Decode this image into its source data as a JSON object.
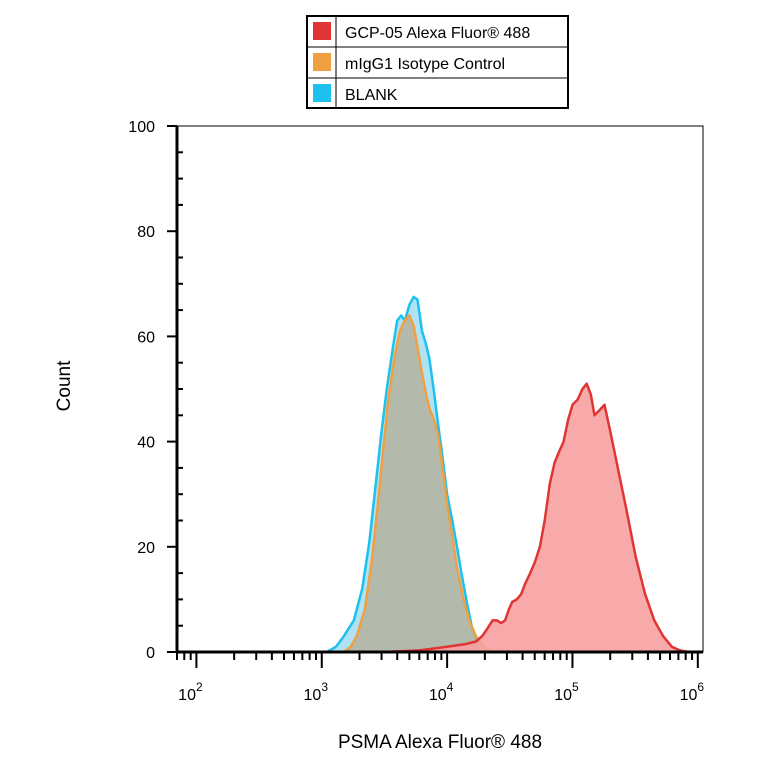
{
  "chart_data": {
    "type": "area",
    "title": "",
    "xlabel": "PSMA Alexa Fluor® 488",
    "ylabel": "Count",
    "xscale": "log",
    "xlim": [
      70,
      1100000
    ],
    "ylim": [
      0,
      100
    ],
    "yticks": [
      0,
      20,
      40,
      60,
      80,
      100
    ],
    "xticks": [
      {
        "value": 100,
        "base": "10",
        "exp": "2"
      },
      {
        "value": 1000,
        "base": "10",
        "exp": "3"
      },
      {
        "value": 10000,
        "base": "10",
        "exp": "4"
      },
      {
        "value": 100000,
        "base": "10",
        "exp": "5"
      },
      {
        "value": 1000000,
        "base": "10",
        "exp": "6"
      }
    ],
    "legend_position": "top",
    "grid": false,
    "series": [
      {
        "name": "BLANK",
        "color": "#1ec0ee",
        "fill": "#a6dff2",
        "points": [
          [
            70,
            0
          ],
          [
            1100,
            0
          ],
          [
            1300,
            1
          ],
          [
            1500,
            3
          ],
          [
            1800,
            6
          ],
          [
            2100,
            12
          ],
          [
            2400,
            21
          ],
          [
            2700,
            32
          ],
          [
            3000,
            42
          ],
          [
            3300,
            50
          ],
          [
            3700,
            58
          ],
          [
            4000,
            63
          ],
          [
            4300,
            64
          ],
          [
            4600,
            63
          ],
          [
            5000,
            66
          ],
          [
            5400,
            67.5
          ],
          [
            5800,
            67
          ],
          [
            6300,
            61
          ],
          [
            6700,
            59
          ],
          [
            7200,
            56
          ],
          [
            7800,
            50
          ],
          [
            8500,
            43
          ],
          [
            9200,
            37
          ],
          [
            10000,
            30
          ],
          [
            11000,
            25
          ],
          [
            12000,
            20
          ],
          [
            13000,
            15
          ],
          [
            14500,
            9
          ],
          [
            16000,
            4
          ],
          [
            18000,
            1.5
          ],
          [
            21000,
            0.3
          ],
          [
            30000,
            0
          ],
          [
            1100000,
            0
          ]
        ]
      },
      {
        "name": "mIgG1 Isotype Control",
        "color": "#f0a040",
        "fill": "#b5b39e",
        "points": [
          [
            70,
            0
          ],
          [
            1500,
            0
          ],
          [
            1700,
            1
          ],
          [
            1900,
            3
          ],
          [
            2200,
            8
          ],
          [
            2500,
            17
          ],
          [
            2800,
            28
          ],
          [
            3100,
            39
          ],
          [
            3400,
            48
          ],
          [
            3800,
            56
          ],
          [
            4200,
            61
          ],
          [
            4600,
            63
          ],
          [
            5000,
            64
          ],
          [
            5400,
            62
          ],
          [
            5800,
            58
          ],
          [
            6300,
            53
          ],
          [
            6800,
            49
          ],
          [
            7300,
            46
          ],
          [
            7900,
            44
          ],
          [
            8500,
            41
          ],
          [
            9200,
            35
          ],
          [
            10000,
            28
          ],
          [
            11000,
            22
          ],
          [
            12000,
            16
          ],
          [
            13500,
            10
          ],
          [
            15000,
            6
          ],
          [
            17000,
            3
          ],
          [
            19500,
            1
          ],
          [
            23000,
            0.2
          ],
          [
            30000,
            0
          ],
          [
            1100000,
            0
          ]
        ]
      },
      {
        "name": "GCP-05 Alexa Fluor® 488",
        "color": "#e03535",
        "fill": "#f7a0a0",
        "points": [
          [
            70,
            0
          ],
          [
            3000,
            0
          ],
          [
            6000,
            0.3
          ],
          [
            10000,
            1
          ],
          [
            14000,
            1.5
          ],
          [
            17000,
            2
          ],
          [
            19000,
            3
          ],
          [
            21000,
            4.5
          ],
          [
            23000,
            6
          ],
          [
            25000,
            6
          ],
          [
            27000,
            5.5
          ],
          [
            29000,
            6
          ],
          [
            31000,
            8
          ],
          [
            33000,
            9.5
          ],
          [
            36000,
            10
          ],
          [
            39000,
            11
          ],
          [
            42000,
            13
          ],
          [
            46000,
            15
          ],
          [
            50000,
            17
          ],
          [
            55000,
            20
          ],
          [
            60000,
            25
          ],
          [
            66000,
            32
          ],
          [
            72000,
            36
          ],
          [
            78000,
            38
          ],
          [
            85000,
            40
          ],
          [
            92000,
            44
          ],
          [
            100000,
            47
          ],
          [
            110000,
            48
          ],
          [
            120000,
            50
          ],
          [
            130000,
            51
          ],
          [
            140000,
            49
          ],
          [
            150000,
            45
          ],
          [
            165000,
            46
          ],
          [
            180000,
            47
          ],
          [
            200000,
            42
          ],
          [
            230000,
            35
          ],
          [
            270000,
            27
          ],
          [
            320000,
            18
          ],
          [
            380000,
            11
          ],
          [
            450000,
            6
          ],
          [
            530000,
            3
          ],
          [
            620000,
            1
          ],
          [
            720000,
            0.3
          ],
          [
            850000,
            0
          ],
          [
            1100000,
            0
          ]
        ]
      }
    ]
  }
}
